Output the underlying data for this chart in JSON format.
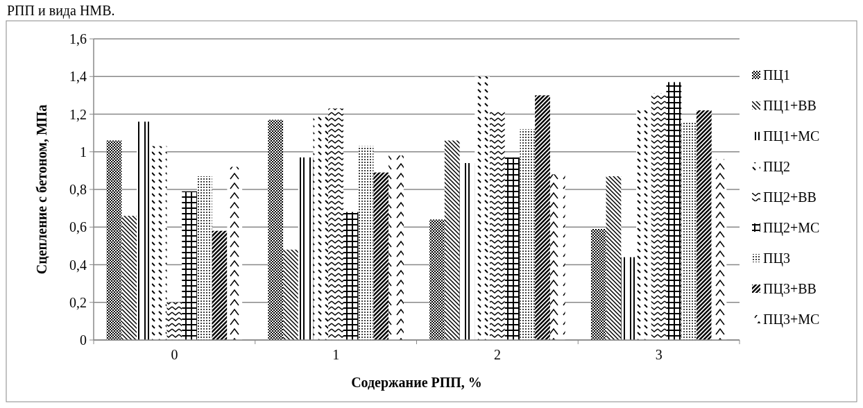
{
  "chart_data": {
    "type": "bar",
    "annotations": [
      "РПП и вида НМВ."
    ],
    "xlabel": "Содержание РПП, %",
    "ylabel": "Сцепление с бетоном, МПа",
    "categories": [
      "0",
      "1",
      "2",
      "3"
    ],
    "series": [
      {
        "name": "ПЦ1",
        "color": "#000000",
        "values": [
          1.06,
          1.17,
          0.64,
          0.59
        ]
      },
      {
        "name": "ПЦ1+ВВ",
        "color": "#000000",
        "values": [
          0.66,
          0.48,
          1.06,
          0.87
        ]
      },
      {
        "name": "ПЦ1+МС",
        "color": "#000000",
        "values": [
          1.16,
          0.97,
          0.94,
          0.44
        ]
      },
      {
        "name": "ПЦ2",
        "color": "#000000",
        "values": [
          1.03,
          1.19,
          1.4,
          1.22
        ]
      },
      {
        "name": "ПЦ2+ВВ",
        "color": "#000000",
        "values": [
          0.2,
          1.23,
          1.22,
          1.31
        ]
      },
      {
        "name": "ПЦ2+МС",
        "color": "#000000",
        "values": [
          0.79,
          0.68,
          0.97,
          1.37
        ]
      },
      {
        "name": "ПЦ3",
        "color": "#000000",
        "values": [
          0.87,
          1.03,
          1.12,
          1.16
        ]
      },
      {
        "name": "ПЦ3+ВВ",
        "color": "#000000",
        "values": [
          0.58,
          0.89,
          1.3,
          1.22
        ]
      },
      {
        "name": "ПЦ3+МС",
        "color": "#000000",
        "values": [
          0.92,
          0.98,
          0.88,
          0.96
        ]
      }
    ],
    "ylim": [
      0,
      1.6
    ],
    "yticks": [
      0,
      {
        "value": 0.2,
        "label": "0,2"
      },
      {
        "value": 0.4,
        "label": "0,4"
      },
      {
        "value": 0.6,
        "label": "0,6"
      },
      {
        "value": 0.8,
        "label": "0,8"
      },
      1,
      {
        "value": 1.2,
        "label": "1,2"
      },
      {
        "value": 1.4,
        "label": "1,4"
      },
      {
        "value": 1.6,
        "label": "1,6"
      }
    ],
    "grid": "y",
    "legend": "right"
  }
}
